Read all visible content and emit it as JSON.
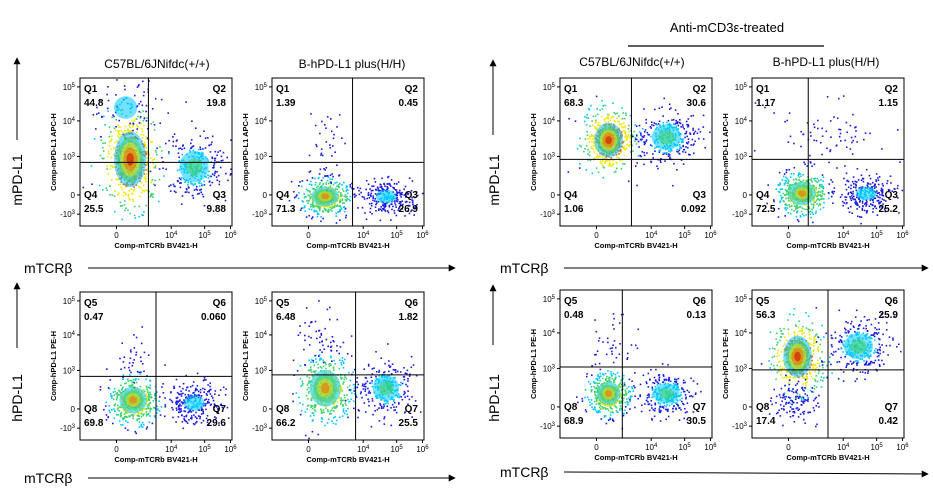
{
  "figure": {
    "treatment_label": "Anti-mCD3ε-treated",
    "y_arrow_labels": [
      "mPD-L1",
      "hPD-L1"
    ],
    "x_arrow_label": "mTCRβ",
    "column_titles": [
      "C57BL/6JNifdc(+/+)",
      "B-hPD-L1 plus(H/H)",
      "C57BL/6JNifdc(+/+)",
      "B-hPD-L1 plus(H/H)"
    ],
    "colormap": [
      "#1a1adc",
      "#00c8ff",
      "#3cd26e",
      "#f0e600",
      "#ff6400",
      "#d20000"
    ]
  },
  "chart_data": [
    {
      "id": "p1",
      "type": "scatter",
      "title": "C57BL/6JNifdc(+/+)",
      "xlabel": "Comp-mTCRb BV421-H",
      "ylabel": "Comp-mPD-L1 APC-H",
      "x_ticks": [
        "0",
        "10^4",
        "10^5",
        "10^6"
      ],
      "y_ticks": [
        "10^5",
        "10^4",
        "10^3",
        "0",
        "-10^3"
      ],
      "quadrants": [
        {
          "name": "Q1",
          "value": "44.8"
        },
        {
          "name": "Q2",
          "value": "19.8"
        },
        {
          "name": "Q3",
          "value": "9.88"
        },
        {
          "name": "Q4",
          "value": "25.5"
        }
      ],
      "clusters": [
        {
          "x": 0.33,
          "y": 0.55,
          "sx": 0.09,
          "sy": 0.16,
          "n": 500,
          "peak": "#d20000"
        },
        {
          "x": 0.75,
          "y": 0.6,
          "sx": 0.1,
          "sy": 0.11,
          "n": 280,
          "peak": "#3cd26e"
        },
        {
          "x": 0.3,
          "y": 0.2,
          "sx": 0.1,
          "sy": 0.1,
          "n": 70,
          "peak": "#00c8ff"
        }
      ]
    },
    {
      "id": "p2",
      "type": "scatter",
      "title": "B-hPD-L1 plus(H/H)",
      "xlabel": "Comp-mTCRb BV421-H",
      "ylabel": "Comp-mPD-L1 APC-H",
      "x_ticks": [
        "0",
        "10^4",
        "10^5",
        "10^6"
      ],
      "y_ticks": [
        "10^5",
        "10^4",
        "10^3",
        "0",
        "-10^3"
      ],
      "quadrants": [
        {
          "name": "Q1",
          "value": "1.39"
        },
        {
          "name": "Q2",
          "value": "0.45"
        },
        {
          "name": "Q3",
          "value": "26.9"
        },
        {
          "name": "Q4",
          "value": "71.3"
        }
      ],
      "clusters": [
        {
          "x": 0.35,
          "y": 0.8,
          "sx": 0.08,
          "sy": 0.06,
          "n": 450,
          "peak": "#ff6400"
        },
        {
          "x": 0.75,
          "y": 0.8,
          "sx": 0.09,
          "sy": 0.06,
          "n": 260,
          "peak": "#00c8ff"
        },
        {
          "x": 0.35,
          "y": 0.45,
          "sx": 0.06,
          "sy": 0.15,
          "n": 40,
          "peak": "#1a1adc"
        }
      ]
    },
    {
      "id": "p3",
      "type": "scatter",
      "title": "C57BL/6JNifdc(+/+)",
      "xlabel": "Comp-mTCRb BV421-H",
      "ylabel": "Comp-mPD-L1 APC-H",
      "x_ticks": [
        "0",
        "10^4",
        "10^5",
        "10^6"
      ],
      "y_ticks": [
        "10^5",
        "10^4",
        "10^3",
        "0",
        "-10^3"
      ],
      "quadrants": [
        {
          "name": "Q1",
          "value": "68.3"
        },
        {
          "name": "Q2",
          "value": "30.6"
        },
        {
          "name": "Q3",
          "value": "0.092"
        },
        {
          "name": "Q4",
          "value": "1.06"
        }
      ],
      "clusters": [
        {
          "x": 0.32,
          "y": 0.42,
          "sx": 0.08,
          "sy": 0.1,
          "n": 480,
          "peak": "#d20000"
        },
        {
          "x": 0.7,
          "y": 0.4,
          "sx": 0.1,
          "sy": 0.09,
          "n": 300,
          "peak": "#3cd26e"
        }
      ]
    },
    {
      "id": "p4",
      "type": "scatter",
      "title": "B-hPD-L1 plus(H/H)",
      "xlabel": "Comp-mTCRb BV421-H",
      "ylabel": "Comp-mPD-L1 APC-H",
      "x_ticks": [
        "0",
        "10^4",
        "10^5",
        "10^6"
      ],
      "y_ticks": [
        "10^5",
        "10^4",
        "10^3",
        "0",
        "-10^3"
      ],
      "quadrants": [
        {
          "name": "Q1",
          "value": "1.17"
        },
        {
          "name": "Q2",
          "value": "1.15"
        },
        {
          "name": "Q3",
          "value": "25.2"
        },
        {
          "name": "Q4",
          "value": "72.5"
        }
      ],
      "clusters": [
        {
          "x": 0.33,
          "y": 0.78,
          "sx": 0.08,
          "sy": 0.07,
          "n": 450,
          "peak": "#ff6400"
        },
        {
          "x": 0.75,
          "y": 0.78,
          "sx": 0.09,
          "sy": 0.06,
          "n": 260,
          "peak": "#00c8ff"
        },
        {
          "x": 0.5,
          "y": 0.4,
          "sx": 0.2,
          "sy": 0.12,
          "n": 80,
          "peak": "#1a1adc"
        }
      ]
    },
    {
      "id": "p5",
      "type": "scatter",
      "title": "",
      "xlabel": "Comp-mTCRb BV421-H",
      "ylabel": "Comp-hPD-L1 PE-H",
      "x_ticks": [
        "0",
        "10^4",
        "10^5",
        "10^6"
      ],
      "y_ticks": [
        "10^5",
        "10^4",
        "10^3",
        "0",
        "-10^3"
      ],
      "quadrants": [
        {
          "name": "Q5",
          "value": "0.47"
        },
        {
          "name": "Q6",
          "value": "0.060"
        },
        {
          "name": "Q7",
          "value": "29.6"
        },
        {
          "name": "Q8",
          "value": "69.8"
        }
      ],
      "clusters": [
        {
          "x": 0.35,
          "y": 0.73,
          "sx": 0.08,
          "sy": 0.08,
          "n": 450,
          "peak": "#ff6400"
        },
        {
          "x": 0.75,
          "y": 0.75,
          "sx": 0.09,
          "sy": 0.07,
          "n": 260,
          "peak": "#00c8ff"
        },
        {
          "x": 0.35,
          "y": 0.45,
          "sx": 0.05,
          "sy": 0.1,
          "n": 30,
          "peak": "#1a1adc"
        }
      ]
    },
    {
      "id": "p6",
      "type": "scatter",
      "title": "",
      "xlabel": "Comp-mTCRb BV421-H",
      "ylabel": "Comp-hPD-L1 PE-H",
      "x_ticks": [
        "0",
        "10^4",
        "10^5",
        "10^6"
      ],
      "y_ticks": [
        "10^5",
        "10^4",
        "10^3",
        "0",
        "-10^3"
      ],
      "quadrants": [
        {
          "name": "Q5",
          "value": "6.48"
        },
        {
          "name": "Q6",
          "value": "1.82"
        },
        {
          "name": "Q7",
          "value": "25.5"
        },
        {
          "name": "Q8",
          "value": "66.2"
        }
      ],
      "clusters": [
        {
          "x": 0.35,
          "y": 0.65,
          "sx": 0.09,
          "sy": 0.11,
          "n": 460,
          "peak": "#ff6400"
        },
        {
          "x": 0.75,
          "y": 0.65,
          "sx": 0.09,
          "sy": 0.09,
          "n": 260,
          "peak": "#3cd26e"
        },
        {
          "x": 0.3,
          "y": 0.3,
          "sx": 0.08,
          "sy": 0.1,
          "n": 50,
          "peak": "#1a1adc"
        }
      ]
    },
    {
      "id": "p7",
      "type": "scatter",
      "title": "",
      "xlabel": "Comp-mTCRb BV421-H",
      "ylabel": "Comp-hPD-L1 PE-H",
      "x_ticks": [
        "0",
        "10^4",
        "10^5",
        "10^6"
      ],
      "y_ticks": [
        "10^5",
        "10^4",
        "10^3",
        "0",
        "-10^3"
      ],
      "quadrants": [
        {
          "name": "Q5",
          "value": "0.48"
        },
        {
          "name": "Q6",
          "value": "0.13"
        },
        {
          "name": "Q7",
          "value": "30.5"
        },
        {
          "name": "Q8",
          "value": "68.9"
        }
      ],
      "clusters": [
        {
          "x": 0.32,
          "y": 0.7,
          "sx": 0.07,
          "sy": 0.07,
          "n": 450,
          "peak": "#ff6400"
        },
        {
          "x": 0.7,
          "y": 0.7,
          "sx": 0.09,
          "sy": 0.07,
          "n": 280,
          "peak": "#3cd26e"
        },
        {
          "x": 0.32,
          "y": 0.4,
          "sx": 0.07,
          "sy": 0.12,
          "n": 40,
          "peak": "#1a1adc"
        }
      ]
    },
    {
      "id": "p8",
      "type": "scatter",
      "title": "",
      "xlabel": "Comp-mTCRb BV421-H",
      "ylabel": "Comp-hPD-L1 PE-H",
      "x_ticks": [
        "0",
        "10^4",
        "10^5",
        "10^6"
      ],
      "y_ticks": [
        "10^5",
        "10^4",
        "10^3",
        "0",
        "-10^3"
      ],
      "quadrants": [
        {
          "name": "Q5",
          "value": "56.3"
        },
        {
          "name": "Q6",
          "value": "25.9"
        },
        {
          "name": "Q7",
          "value": "0.42"
        },
        {
          "name": "Q8",
          "value": "17.4"
        }
      ],
      "clusters": [
        {
          "x": 0.3,
          "y": 0.45,
          "sx": 0.08,
          "sy": 0.12,
          "n": 440,
          "peak": "#d20000"
        },
        {
          "x": 0.7,
          "y": 0.38,
          "sx": 0.1,
          "sy": 0.09,
          "n": 300,
          "peak": "#3cd26e"
        },
        {
          "x": 0.28,
          "y": 0.75,
          "sx": 0.07,
          "sy": 0.07,
          "n": 120,
          "peak": "#1a1adc"
        }
      ]
    }
  ]
}
